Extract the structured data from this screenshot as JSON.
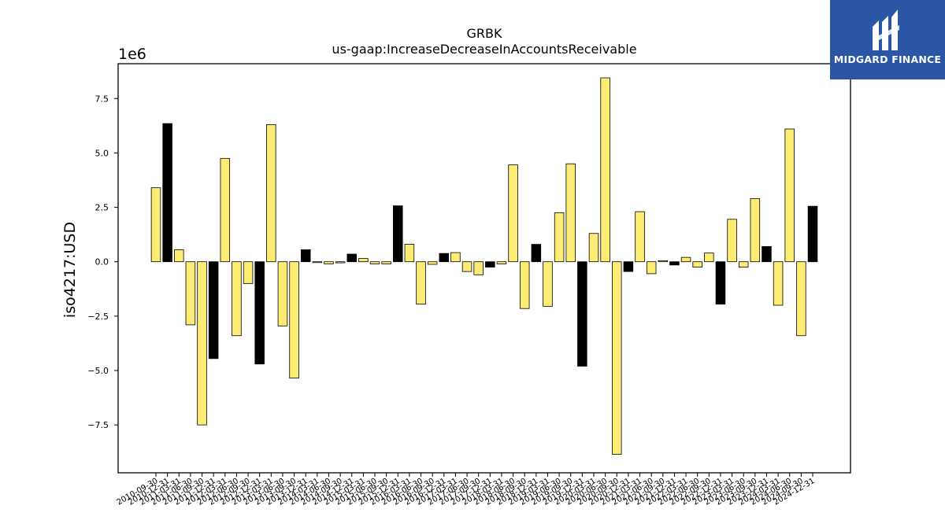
{
  "chart_data": {
    "type": "bar",
    "title": "GRBK",
    "subtitle": "us-gaap:IncreaseDecreaseInAccountsReceivable",
    "ylabel": "iso4217:USD",
    "xlabel": "",
    "y_scale_label": "1e6",
    "ylim": [
      -9.7,
      9.1
    ],
    "yticks": [
      "−7.5",
      "−5.0",
      "−2.5",
      "0.0",
      "2.5",
      "5.0",
      "7.5"
    ],
    "ytick_values": [
      -7.5,
      -5.0,
      -2.5,
      0.0,
      2.5,
      5.0,
      7.5
    ],
    "colors": {
      "quarterly": "#fcec74",
      "annual": "#000000",
      "edge": "#000000"
    },
    "categories": [
      "2010-09-30",
      "2010-12-31",
      "2011-03-31",
      "2011-06-30",
      "2011-09-30",
      "2011-12-31",
      "2012-03-31",
      "2012-06-30",
      "2012-09-30",
      "2012-12-31",
      "2013-03-31",
      "2013-06-30",
      "2013-09-30",
      "2013-12-31",
      "2014-03-31",
      "2014-06-30",
      "2014-09-30",
      "2014-12-31",
      "2015-03-31",
      "2015-06-30",
      "2015-09-30",
      "2015-12-31",
      "2016-03-31",
      "2016-06-30",
      "2016-09-30",
      "2016-12-31",
      "2017-03-31",
      "2017-06-30",
      "2017-09-30",
      "2017-12-31",
      "2018-03-31",
      "2018-06-30",
      "2018-09-30",
      "2018-12-31",
      "2019-03-31",
      "2019-06-30",
      "2019-09-30",
      "2019-12-31",
      "2020-03-31",
      "2020-06-30",
      "2020-09-30",
      "2020-12-31",
      "2021-03-31",
      "2021-06-30",
      "2021-09-30",
      "2021-12-31",
      "2022-03-31",
      "2022-06-30",
      "2022-09-30",
      "2022-12-31",
      "2023-03-31",
      "2023-06-30",
      "2023-09-30",
      "2023-12-31",
      "2024-03-31",
      "2024-06-30",
      "2024-09-30",
      "2024-12-31"
    ],
    "values": [
      3.4,
      6.35,
      0.55,
      -2.9,
      -7.5,
      -4.45,
      4.75,
      -3.4,
      -1.0,
      -4.7,
      6.3,
      -2.95,
      -5.35,
      0.55,
      -0.04,
      -0.1,
      -0.05,
      0.35,
      0.15,
      -0.1,
      -0.1,
      2.57,
      0.8,
      -1.95,
      -0.12,
      0.38,
      0.42,
      -0.45,
      -0.6,
      -0.25,
      -0.1,
      4.45,
      -2.15,
      0.8,
      -2.05,
      2.25,
      4.5,
      -4.8,
      1.3,
      8.45,
      -8.85,
      -0.45,
      2.3,
      -0.55,
      0.05,
      -0.15,
      0.2,
      -0.25,
      0.4,
      -1.95,
      1.95,
      -0.25,
      2.9,
      0.7,
      -2.0,
      6.1,
      -3.4,
      2.55
    ],
    "bar_kind": [
      "quarterly",
      "annual",
      "quarterly",
      "quarterly",
      "quarterly",
      "annual",
      "quarterly",
      "quarterly",
      "quarterly",
      "annual",
      "quarterly",
      "quarterly",
      "quarterly",
      "annual",
      "quarterly",
      "quarterly",
      "quarterly",
      "annual",
      "quarterly",
      "quarterly",
      "quarterly",
      "annual",
      "quarterly",
      "quarterly",
      "quarterly",
      "annual",
      "quarterly",
      "quarterly",
      "quarterly",
      "annual",
      "quarterly",
      "quarterly",
      "quarterly",
      "annual",
      "quarterly",
      "quarterly",
      "quarterly",
      "annual",
      "quarterly",
      "quarterly",
      "quarterly",
      "annual",
      "quarterly",
      "quarterly",
      "quarterly",
      "annual",
      "quarterly",
      "quarterly",
      "quarterly",
      "annual",
      "quarterly",
      "quarterly",
      "quarterly",
      "annual",
      "quarterly",
      "quarterly",
      "quarterly",
      "annual"
    ]
  },
  "logo": {
    "text": "MIDGARD FINANCE",
    "icon": "midgard-logo-icon"
  }
}
